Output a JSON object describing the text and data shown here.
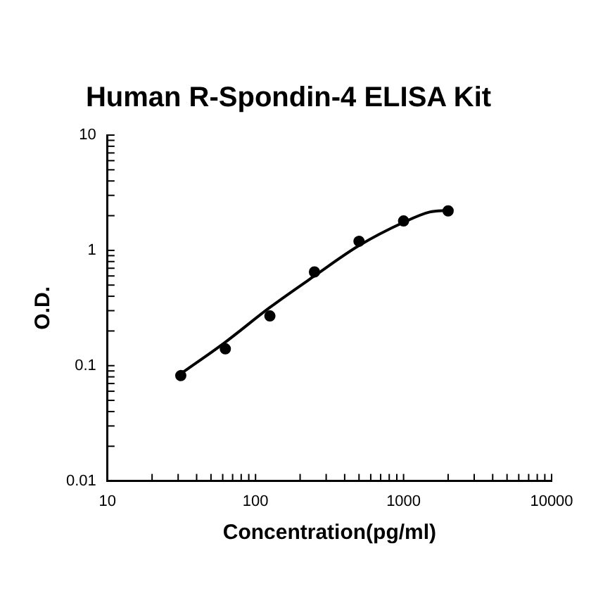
{
  "chart_data": {
    "type": "scatter",
    "title": "Human R-Spondin-4 ELISA Kit",
    "xlabel": "Concentration(pg/ml)",
    "ylabel": "O.D.",
    "log": "xy",
    "marker": "circle",
    "xlim": [
      10,
      10000
    ],
    "ylim": [
      0.01,
      10
    ],
    "xticks": [
      10,
      {
        "value": 20,
        "label": null
      },
      {
        "value": 30,
        "label": null
      },
      {
        "value": 40,
        "label": null
      },
      {
        "value": 50,
        "label": null
      },
      {
        "value": 60,
        "label": null
      },
      {
        "value": 70,
        "label": null
      },
      {
        "value": 80,
        "label": null
      },
      {
        "value": 90,
        "label": null
      },
      100,
      {
        "value": 200,
        "label": null
      },
      {
        "value": 300,
        "label": null
      },
      {
        "value": 400,
        "label": null
      },
      {
        "value": 500,
        "label": null
      },
      {
        "value": 600,
        "label": null
      },
      {
        "value": 700,
        "label": null
      },
      {
        "value": 800,
        "label": null
      },
      {
        "value": 900,
        "label": null
      },
      1000,
      {
        "value": 2000,
        "label": null
      },
      {
        "value": 3000,
        "label": null
      },
      {
        "value": 4000,
        "label": null
      },
      {
        "value": 5000,
        "label": null
      },
      {
        "value": 6000,
        "label": null
      },
      {
        "value": 7000,
        "label": null
      },
      {
        "value": 8000,
        "label": null
      },
      {
        "value": 9000,
        "label": null
      },
      10000
    ],
    "yticks": [
      0.01,
      {
        "value": 0.02,
        "label": null
      },
      {
        "value": 0.03,
        "label": null
      },
      {
        "value": 0.04,
        "label": null
      },
      {
        "value": 0.05,
        "label": null
      },
      {
        "value": 0.06,
        "label": null
      },
      {
        "value": 0.07,
        "label": null
      },
      {
        "value": 0.08,
        "label": null
      },
      {
        "value": 0.09,
        "label": null
      },
      0.1,
      {
        "value": 0.2,
        "label": null
      },
      {
        "value": 0.3,
        "label": null
      },
      {
        "value": 0.4,
        "label": null
      },
      {
        "value": 0.5,
        "label": null
      },
      {
        "value": 0.6,
        "label": null
      },
      {
        "value": 0.7,
        "label": null
      },
      {
        "value": 0.8,
        "label": null
      },
      {
        "value": 0.9,
        "label": null
      },
      1,
      {
        "value": 2,
        "label": null
      },
      {
        "value": 3,
        "label": null
      },
      {
        "value": 4,
        "label": null
      },
      {
        "value": 5,
        "label": null
      },
      {
        "value": 6,
        "label": null
      },
      {
        "value": 7,
        "label": null
      },
      {
        "value": 8,
        "label": null
      },
      {
        "value": 9,
        "label": null
      },
      10
    ],
    "series": [
      {
        "color": "#000000",
        "x": [
          31.25,
          62.5,
          125,
          250,
          500,
          1000,
          2000
        ],
        "values": [
          0.082,
          0.14,
          0.27,
          0.65,
          1.2,
          1.8,
          2.2
        ]
      },
      {
        "type": "line",
        "color": "#000000",
        "marker": "none",
        "x": [
          31.25,
          62.5,
          125,
          250,
          500,
          1000,
          1500,
          2000
        ],
        "values": [
          0.085,
          0.16,
          0.32,
          0.6,
          1.1,
          1.75,
          2.15,
          2.22
        ]
      }
    ]
  }
}
